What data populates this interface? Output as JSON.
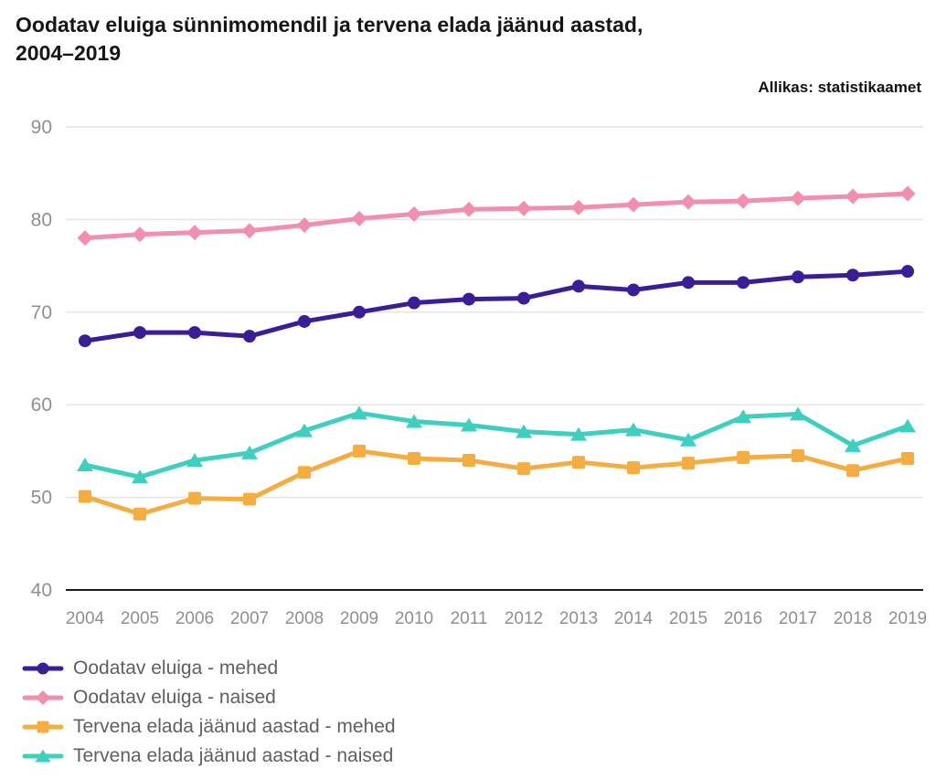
{
  "page": {
    "title": "Oodatav eluiga sünnimomendil ja tervena elada jäänud aastad,\n2004–2019",
    "source": "Allikas: statistikaamet"
  },
  "chart_data": {
    "type": "line",
    "title": "Oodatav eluiga sünnimomendil ja tervena elada jäänud aastad, 2004–2019",
    "source": "Allikas: statistikaamet",
    "categories": [
      2004,
      2005,
      2006,
      2007,
      2008,
      2009,
      2010,
      2011,
      2012,
      2013,
      2014,
      2015,
      2016,
      2017,
      2018,
      2019
    ],
    "series": [
      {
        "name": "Oodatav eluiga - mehed",
        "color": "#3b1d96",
        "marker": "circle",
        "values": [
          66.9,
          67.8,
          67.8,
          67.4,
          69.0,
          70.0,
          71.0,
          71.4,
          71.5,
          72.8,
          72.4,
          73.2,
          73.2,
          73.8,
          74.0,
          74.4
        ]
      },
      {
        "name": "Oodatav eluiga - naised",
        "color": "#f28fad",
        "marker": "diamond",
        "values": [
          78.0,
          78.4,
          78.6,
          78.8,
          79.4,
          80.1,
          80.6,
          81.1,
          81.2,
          81.3,
          81.6,
          81.9,
          82.0,
          82.3,
          82.5,
          82.8
        ]
      },
      {
        "name": "Tervena elada jäänud aastad - mehed",
        "color": "#f5ad41",
        "marker": "square",
        "values": [
          50.1,
          48.2,
          49.9,
          49.8,
          52.7,
          55.0,
          54.2,
          54.0,
          53.1,
          53.8,
          53.2,
          53.7,
          54.3,
          54.5,
          52.9,
          54.2
        ]
      },
      {
        "name": "Tervena elada jäänud aastad - naised",
        "color": "#3fcfc0",
        "marker": "triangle",
        "values": [
          53.5,
          52.2,
          54.0,
          54.8,
          57.2,
          59.1,
          58.2,
          57.8,
          57.1,
          56.8,
          57.3,
          56.2,
          58.7,
          59.0,
          55.6,
          57.7
        ]
      }
    ],
    "xlabel": "",
    "ylabel": "",
    "ylim": [
      40,
      90
    ],
    "y_ticks": [
      40,
      50,
      60,
      70,
      80,
      90
    ],
    "grid": "horizontal",
    "legend_position": "bottom-left",
    "colors": {
      "gridline": "#e4e4e4",
      "axis_line": "#1c1c1c",
      "tick_label": "#8f8f8f",
      "legend_text": "#5f5f5f",
      "title_text": "#161616"
    }
  }
}
